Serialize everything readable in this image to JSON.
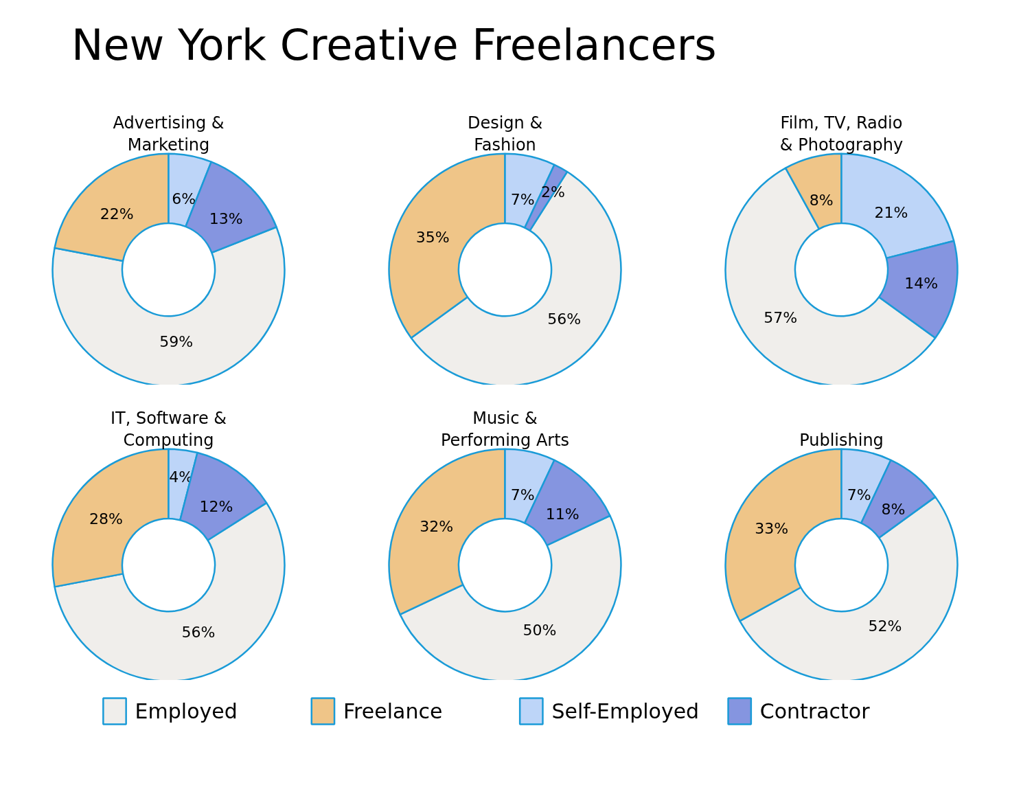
{
  "chart_data": [
    {
      "type": "other",
      "title": "New York Creative Freelancers"
    },
    {
      "type": "donut",
      "title": "Advertising &\nMarketing",
      "categories": [
        "Employed",
        "Freelance",
        "Self-Employed",
        "Contractor"
      ],
      "values": [
        59,
        22,
        6,
        13
      ],
      "value_labels": [
        "59%",
        "22%",
        "6%",
        "13%"
      ],
      "colors": [
        "#f0eeeb",
        "#efc588",
        "#bdd5f8",
        "#8595e0"
      ],
      "legend": "bottom"
    },
    {
      "type": "donut",
      "title": "Design &\nFashion",
      "categories": [
        null,
        null,
        null,
        null
      ],
      "values": [
        56,
        35,
        7,
        2
      ],
      "value_labels": [
        "56%",
        "35%",
        "7%",
        "2%"
      ],
      "colors": [
        "#f0eeeb",
        "#efc588",
        "#bdd5f8",
        "#8595e0"
      ]
    },
    {
      "type": "donut",
      "title": "Film, TV, Radio\n& Photography",
      "categories": [
        null,
        null,
        null,
        null
      ],
      "values": [
        57,
        8,
        21,
        14
      ],
      "value_labels": [
        "57%",
        "8%",
        "21%",
        "14%"
      ],
      "colors": [
        "#f0eeeb",
        "#efc588",
        "#bdd5f8",
        "#8595e0"
      ]
    },
    {
      "type": "donut",
      "title": "IT, Software &\nComputing",
      "categories": [
        null,
        null,
        null,
        null
      ],
      "values": [
        56,
        28,
        4,
        12
      ],
      "value_labels": [
        "56%",
        "28%",
        "4%",
        "12%"
      ],
      "colors": [
        "#f0eeeb",
        "#efc588",
        "#bdd5f8",
        "#8595e0"
      ]
    },
    {
      "type": "donut",
      "title": "Music &\nPerforming Arts",
      "categories": [
        null,
        null,
        null,
        null
      ],
      "values": [
        50,
        32,
        7,
        11
      ],
      "value_labels": [
        "50%",
        "32%",
        "7%",
        "11%"
      ],
      "colors": [
        "#f0eeeb",
        "#efc588",
        "#bdd5f8",
        "#8595e0"
      ]
    },
    {
      "type": "donut",
      "title": "Publishing",
      "categories": [
        null,
        null,
        null,
        null
      ],
      "values": [
        52,
        33,
        7,
        8
      ],
      "value_labels": [
        "52%",
        "33%",
        "7%",
        "8%"
      ],
      "colors": [
        "#f0eeeb",
        "#efc588",
        "#bdd5f8",
        "#8595e0"
      ]
    }
  ]
}
